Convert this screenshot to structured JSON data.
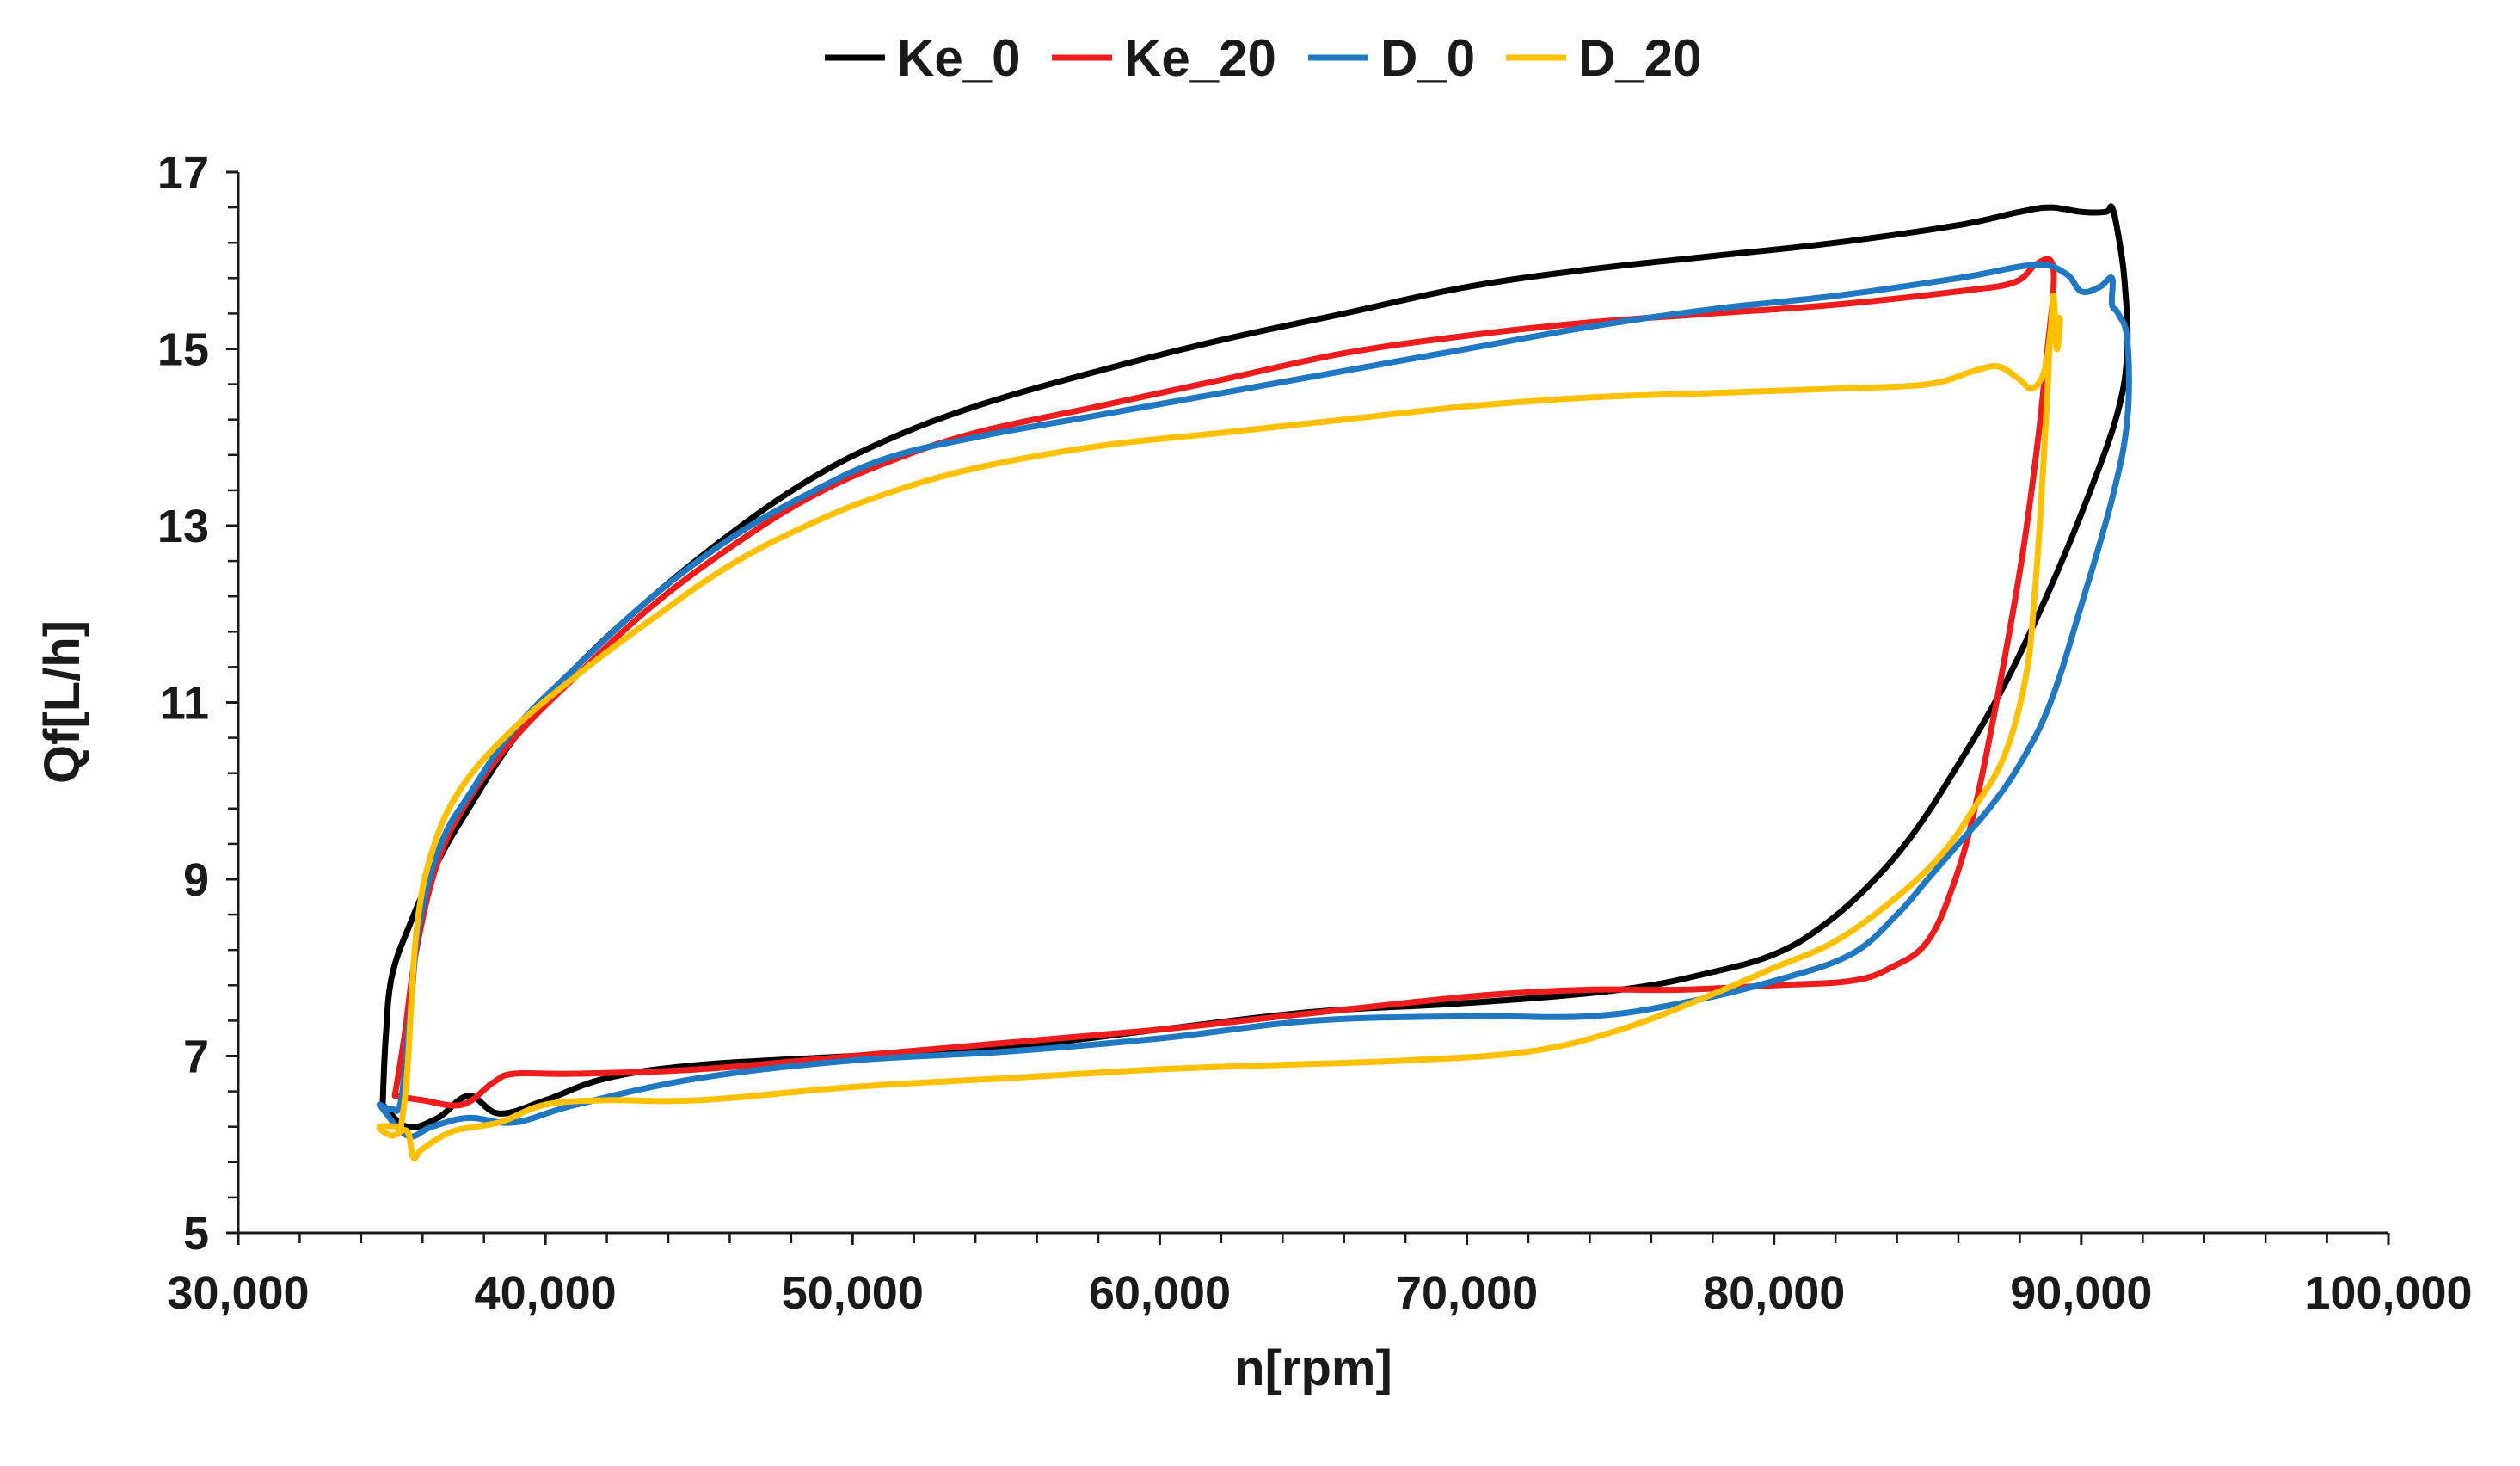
{
  "chart_data": {
    "type": "line",
    "title": "",
    "xlabel": "n[rpm]",
    "ylabel": "Qf[L/h]",
    "xlim": [
      30000,
      100000
    ],
    "ylim": [
      5,
      17
    ],
    "grid": false,
    "legend_position": "top",
    "x_ticks": [
      30000,
      40000,
      50000,
      60000,
      70000,
      80000,
      90000,
      100000
    ],
    "x_tick_labels": [
      "30,000",
      "40,000",
      "50,000",
      "60,000",
      "70,000",
      "80,000",
      "90,000",
      "100,000"
    ],
    "y_ticks": [
      5,
      7,
      9,
      11,
      13,
      15,
      17
    ],
    "y_tick_labels": [
      "5",
      "7",
      "9",
      "11",
      "13",
      "15",
      "17"
    ],
    "series": [
      {
        "name": "Ke_0",
        "color": "#000000",
        "points": [
          [
            34700,
            6.45
          ],
          [
            34800,
            7.2
          ],
          [
            35000,
            7.9
          ],
          [
            35600,
            8.5
          ],
          [
            36500,
            9.2
          ],
          [
            37500,
            9.8
          ],
          [
            39000,
            10.6
          ],
          [
            41000,
            11.4
          ],
          [
            43500,
            12.2
          ],
          [
            46000,
            12.9
          ],
          [
            48500,
            13.5
          ],
          [
            51000,
            13.95
          ],
          [
            54000,
            14.35
          ],
          [
            58000,
            14.75
          ],
          [
            62000,
            15.1
          ],
          [
            66000,
            15.4
          ],
          [
            70000,
            15.7
          ],
          [
            74000,
            15.9
          ],
          [
            78000,
            16.05
          ],
          [
            82000,
            16.2
          ],
          [
            86000,
            16.4
          ],
          [
            88000,
            16.55
          ],
          [
            89000,
            16.6
          ],
          [
            90000,
            16.55
          ],
          [
            90800,
            16.55
          ],
          [
            91000,
            16.6
          ],
          [
            91200,
            16.3
          ],
          [
            91400,
            15.8
          ],
          [
            91500,
            15.0
          ],
          [
            91200,
            14.3
          ],
          [
            90300,
            13.4
          ],
          [
            89000,
            12.3
          ],
          [
            87500,
            11.2
          ],
          [
            86000,
            10.3
          ],
          [
            84500,
            9.5
          ],
          [
            83000,
            8.9
          ],
          [
            81500,
            8.45
          ],
          [
            80000,
            8.15
          ],
          [
            78000,
            7.95
          ],
          [
            75000,
            7.75
          ],
          [
            70000,
            7.6
          ],
          [
            65000,
            7.5
          ],
          [
            60000,
            7.3
          ],
          [
            55000,
            7.1
          ],
          [
            50000,
            7.0
          ],
          [
            45000,
            6.9
          ],
          [
            42000,
            6.75
          ],
          [
            40000,
            6.5
          ],
          [
            38500,
            6.35
          ],
          [
            37500,
            6.55
          ],
          [
            36500,
            6.3
          ],
          [
            35500,
            6.2
          ],
          [
            34700,
            6.45
          ]
        ]
      },
      {
        "name": "Ke_20",
        "color": "#ee1c1c",
        "points": [
          [
            35100,
            6.55
          ],
          [
            35400,
            7.2
          ],
          [
            35800,
            8.2
          ],
          [
            36500,
            9.2
          ],
          [
            37500,
            9.9
          ],
          [
            39000,
            10.6
          ],
          [
            41000,
            11.3
          ],
          [
            43500,
            12.1
          ],
          [
            46000,
            12.75
          ],
          [
            48500,
            13.3
          ],
          [
            51000,
            13.7
          ],
          [
            54000,
            14.05
          ],
          [
            58000,
            14.35
          ],
          [
            62000,
            14.65
          ],
          [
            66000,
            14.95
          ],
          [
            70000,
            15.15
          ],
          [
            74000,
            15.3
          ],
          [
            78000,
            15.4
          ],
          [
            82000,
            15.5
          ],
          [
            86000,
            15.65
          ],
          [
            87800,
            15.75
          ],
          [
            88500,
            15.95
          ],
          [
            89000,
            16.0
          ],
          [
            89100,
            15.7
          ],
          [
            88900,
            15.0
          ],
          [
            88600,
            14.0
          ],
          [
            88100,
            12.7
          ],
          [
            87400,
            11.3
          ],
          [
            86600,
            9.9
          ],
          [
            85900,
            9.0
          ],
          [
            85000,
            8.3
          ],
          [
            83800,
            8.0
          ],
          [
            82500,
            7.85
          ],
          [
            80000,
            7.8
          ],
          [
            77000,
            7.75
          ],
          [
            74000,
            7.75
          ],
          [
            71000,
            7.7
          ],
          [
            68000,
            7.6
          ],
          [
            64000,
            7.45
          ],
          [
            60000,
            7.3
          ],
          [
            55000,
            7.15
          ],
          [
            50000,
            7.0
          ],
          [
            45000,
            6.85
          ],
          [
            41000,
            6.8
          ],
          [
            39000,
            6.8
          ],
          [
            38300,
            6.7
          ],
          [
            37300,
            6.45
          ],
          [
            36000,
            6.5
          ],
          [
            35100,
            6.55
          ]
        ]
      },
      {
        "name": "D_0",
        "color": "#1f78c1",
        "points": [
          [
            34600,
            6.45
          ],
          [
            35000,
            6.4
          ],
          [
            35300,
            6.5
          ],
          [
            35600,
            7.5
          ],
          [
            35900,
            8.5
          ],
          [
            36600,
            9.4
          ],
          [
            37600,
            10.0
          ],
          [
            39000,
            10.7
          ],
          [
            41000,
            11.4
          ],
          [
            43500,
            12.2
          ],
          [
            46000,
            12.85
          ],
          [
            48500,
            13.35
          ],
          [
            51000,
            13.75
          ],
          [
            54000,
            14.0
          ],
          [
            58000,
            14.25
          ],
          [
            62000,
            14.5
          ],
          [
            66000,
            14.75
          ],
          [
            70000,
            15.0
          ],
          [
            74000,
            15.25
          ],
          [
            78000,
            15.45
          ],
          [
            82000,
            15.6
          ],
          [
            86000,
            15.8
          ],
          [
            88500,
            15.95
          ],
          [
            89500,
            15.85
          ],
          [
            90000,
            15.65
          ],
          [
            90600,
            15.7
          ],
          [
            91000,
            15.8
          ],
          [
            91000,
            15.5
          ],
          [
            91200,
            15.4
          ],
          [
            91500,
            15.1
          ],
          [
            91500,
            14.2
          ],
          [
            91000,
            13.3
          ],
          [
            90000,
            12.1
          ],
          [
            89000,
            11.0
          ],
          [
            88000,
            10.3
          ],
          [
            87000,
            9.8
          ],
          [
            86000,
            9.4
          ],
          [
            85000,
            9.0
          ],
          [
            84000,
            8.6
          ],
          [
            82500,
            8.15
          ],
          [
            80000,
            7.85
          ],
          [
            77000,
            7.6
          ],
          [
            74000,
            7.45
          ],
          [
            70000,
            7.45
          ],
          [
            65000,
            7.4
          ],
          [
            60000,
            7.2
          ],
          [
            55000,
            7.05
          ],
          [
            50000,
            6.95
          ],
          [
            45000,
            6.75
          ],
          [
            41000,
            6.45
          ],
          [
            39000,
            6.25
          ],
          [
            37500,
            6.3
          ],
          [
            36300,
            6.2
          ],
          [
            35500,
            6.1
          ],
          [
            34600,
            6.45
          ]
        ]
      },
      {
        "name": "D_20",
        "color": "#ffc000",
        "points": [
          [
            35300,
            6.2
          ],
          [
            35500,
            6.8
          ],
          [
            35800,
            8.4
          ],
          [
            36300,
            9.3
          ],
          [
            37200,
            10.0
          ],
          [
            38800,
            10.65
          ],
          [
            41000,
            11.3
          ],
          [
            43500,
            11.95
          ],
          [
            46000,
            12.55
          ],
          [
            48500,
            13.0
          ],
          [
            51000,
            13.35
          ],
          [
            54000,
            13.65
          ],
          [
            58000,
            13.9
          ],
          [
            62000,
            14.05
          ],
          [
            66000,
            14.2
          ],
          [
            70000,
            14.35
          ],
          [
            74000,
            14.45
          ],
          [
            78000,
            14.5
          ],
          [
            82000,
            14.55
          ],
          [
            85000,
            14.6
          ],
          [
            86500,
            14.75
          ],
          [
            87300,
            14.8
          ],
          [
            88000,
            14.65
          ],
          [
            88400,
            14.55
          ],
          [
            88800,
            14.75
          ],
          [
            89000,
            15.2
          ],
          [
            89100,
            15.6
          ],
          [
            89200,
            15.0
          ],
          [
            89300,
            15.35
          ],
          [
            89000,
            15.1
          ],
          [
            88900,
            14.5
          ],
          [
            88700,
            13.3
          ],
          [
            88500,
            12.3
          ],
          [
            88200,
            11.3
          ],
          [
            87500,
            10.4
          ],
          [
            86500,
            9.8
          ],
          [
            85500,
            9.3
          ],
          [
            84000,
            8.8
          ],
          [
            82000,
            8.3
          ],
          [
            80000,
            8.0
          ],
          [
            78000,
            7.7
          ],
          [
            75000,
            7.3
          ],
          [
            72000,
            7.05
          ],
          [
            68000,
            6.95
          ],
          [
            64000,
            6.9
          ],
          [
            60000,
            6.85
          ],
          [
            55000,
            6.75
          ],
          [
            50000,
            6.65
          ],
          [
            45000,
            6.5
          ],
          [
            42000,
            6.5
          ],
          [
            40000,
            6.45
          ],
          [
            38500,
            6.25
          ],
          [
            37000,
            6.15
          ],
          [
            36000,
            5.95
          ],
          [
            35700,
            5.85
          ],
          [
            35500,
            6.15
          ],
          [
            35000,
            6.1
          ],
          [
            34600,
            6.2
          ],
          [
            35300,
            6.2
          ]
        ]
      }
    ]
  }
}
